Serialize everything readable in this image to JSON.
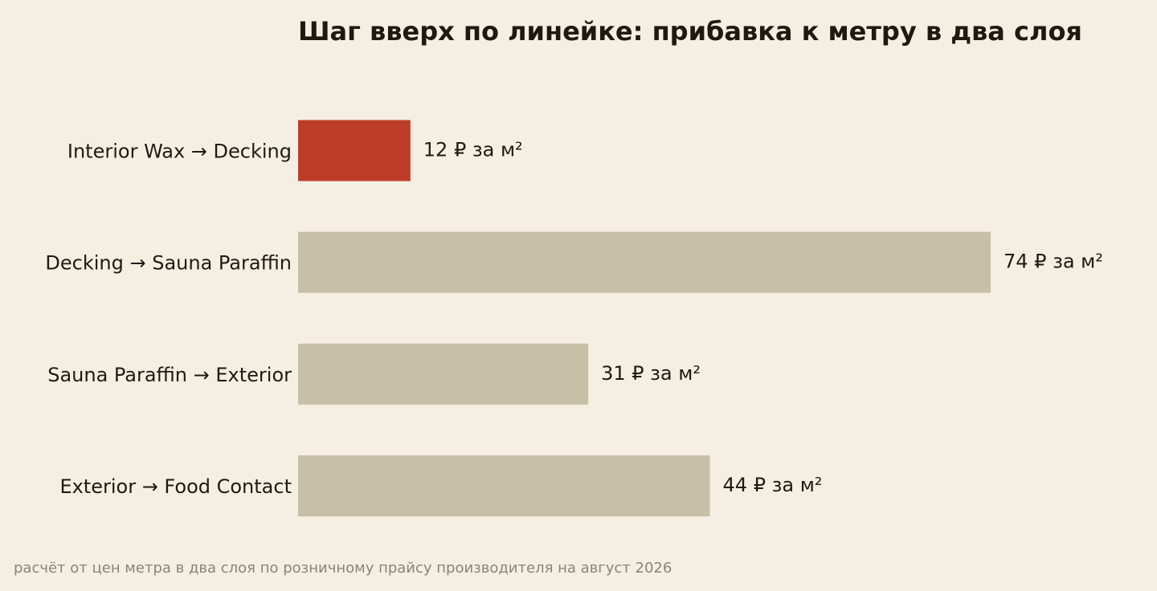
{
  "chart_data": {
    "type": "bar",
    "orientation": "horizontal",
    "title": "Шаг вверх по линейке: прибавка к метру в два слоя",
    "categories": [
      "Interior Wax → Decking",
      "Decking → Sauna Paraffin",
      "Sauna Paraffin → Exterior",
      "Exterior → Food Contact"
    ],
    "values": [
      12,
      74,
      31,
      44
    ],
    "value_suffix": " ₽ за м²",
    "xlim": [
      0,
      74
    ],
    "grid": false,
    "legend": "none",
    "colors": {
      "highlight": "#bc3c27",
      "default": "#c8bfa7"
    },
    "highlight_index": 0,
    "note": "расчёт от цен метра в два слоя по розничному прайсу производителя на август 2026"
  }
}
